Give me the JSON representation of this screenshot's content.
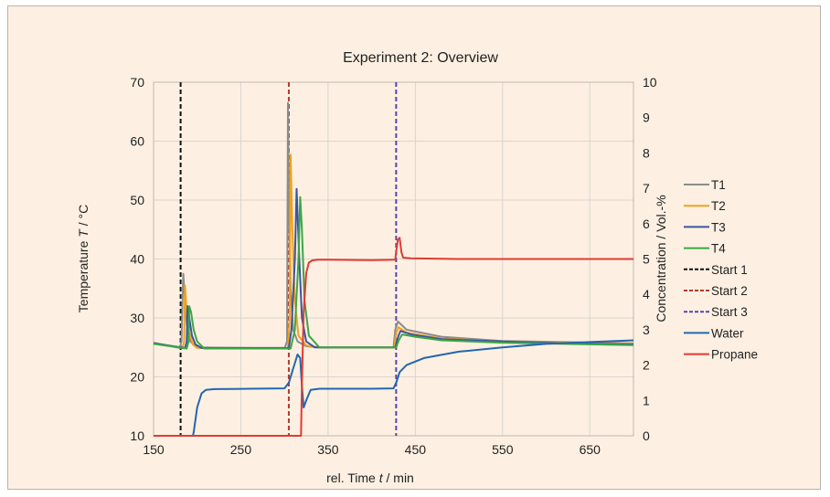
{
  "chart_data": {
    "type": "line",
    "title": "Experiment 2: Overview",
    "xlabel_prefix": "rel. Time ",
    "xlabel_var": "t",
    "xlabel_suffix": "  / min",
    "ylabel_prefix": "Temperature ",
    "ylabel_var": "T",
    "ylabel_suffix": " / °C",
    "y2label": "Concentration / Vol.-%",
    "xlim": [
      150,
      700
    ],
    "ylim": [
      10,
      70
    ],
    "y2lim": [
      0,
      10
    ],
    "xticks": [
      150,
      250,
      350,
      450,
      550,
      650
    ],
    "yticks": [
      10,
      20,
      30,
      40,
      50,
      60,
      70
    ],
    "y2ticks": [
      0,
      1,
      2,
      3,
      4,
      5,
      6,
      7,
      8,
      9,
      10
    ],
    "grid": true,
    "legend_position": "right",
    "series": [
      {
        "name": "T1",
        "axis": "left",
        "color": "#8c8c8c",
        "x": [
          150,
          180,
          182,
          184,
          186,
          188,
          192,
          200,
          260,
          300,
          303,
          304,
          305,
          307,
          310,
          315,
          325,
          340,
          400,
          425,
          427,
          430,
          440,
          480,
          550,
          620,
          700
        ],
        "y": [
          25.8,
          24.9,
          26,
          37.5,
          33,
          29,
          26,
          25,
          24.9,
          24.8,
          26,
          66.5,
          50,
          35,
          28,
          26,
          25.2,
          25,
          25,
          25,
          28,
          29.4,
          28,
          26.8,
          26.1,
          25.9,
          25.7
        ]
      },
      {
        "name": "T2",
        "axis": "left",
        "color": "#f0a21c",
        "x": [
          150,
          183,
          185,
          186,
          188,
          191,
          195,
          200,
          260,
          304,
          306,
          307,
          309,
          312,
          316,
          325,
          340,
          400,
          426,
          428,
          431,
          440,
          480,
          550,
          620,
          700
        ],
        "y": [
          25.7,
          24.9,
          26,
          35.5,
          31,
          27.5,
          25.5,
          24.9,
          24.9,
          24.9,
          30,
          57.7,
          45,
          33,
          27,
          25.3,
          25,
          25,
          25,
          27.5,
          28.4,
          27.5,
          26.5,
          26,
          25.8,
          25.6
        ]
      },
      {
        "name": "T3",
        "axis": "left",
        "color": "#3d54a3",
        "x": [
          150,
          186,
          188,
          189,
          191,
          194,
          198,
          205,
          260,
          305,
          308,
          312,
          314,
          317,
          320,
          325,
          335,
          400,
          427,
          430,
          433,
          445,
          480,
          550,
          620,
          700
        ],
        "y": [
          25.7,
          24.9,
          26,
          32,
          30,
          27,
          25.5,
          24.9,
          24.9,
          24.9,
          28,
          40,
          51.9,
          40,
          30,
          26,
          25,
          25,
          25,
          26.7,
          27.8,
          27.2,
          26.4,
          26,
          25.7,
          25.5
        ]
      },
      {
        "name": "T4",
        "axis": "left",
        "color": "#3aa845",
        "x": [
          150,
          188,
          190,
          191,
          193,
          196,
          200,
          208,
          260,
          307,
          312,
          316,
          318,
          320,
          323,
          328,
          340,
          400,
          428,
          431,
          435,
          450,
          480,
          550,
          620,
          700
        ],
        "y": [
          25.6,
          24.8,
          26,
          32,
          31,
          28,
          26,
          24.8,
          24.8,
          24.8,
          28,
          40,
          50.5,
          45,
          33,
          27,
          25,
          25,
          25,
          26.2,
          27.2,
          26.8,
          26.2,
          25.8,
          25.6,
          25.4
        ]
      },
      {
        "name": "Water",
        "axis": "right",
        "color": "#2266b0",
        "x": [
          150,
          195,
          196,
          200,
          205,
          210,
          220,
          260,
          300,
          305,
          310,
          315,
          318,
          320,
          322,
          325,
          330,
          340,
          400,
          425,
          428,
          432,
          440,
          460,
          500,
          550,
          600,
          650,
          700
        ],
        "y": [
          0,
          0,
          0.1,
          0.8,
          1.2,
          1.3,
          1.32,
          1.33,
          1.34,
          1.5,
          1.9,
          2.3,
          2.2,
          1.4,
          0.8,
          1.0,
          1.3,
          1.33,
          1.33,
          1.34,
          1.5,
          1.8,
          2.0,
          2.2,
          2.38,
          2.5,
          2.6,
          2.65,
          2.7
        ]
      },
      {
        "name": "Propane",
        "axis": "right",
        "color": "#e13a33",
        "x": [
          150,
          319,
          320,
          322,
          325,
          328,
          332,
          338,
          350,
          400,
          427,
          428,
          430,
          432,
          434,
          436,
          445,
          500,
          600,
          700
        ],
        "y": [
          0,
          0,
          1.5,
          3.5,
          4.6,
          4.9,
          4.96,
          4.98,
          4.98,
          4.97,
          4.98,
          5.2,
          5.55,
          5.6,
          5.2,
          5.04,
          5.02,
          5.0,
          5.0,
          5.0
        ]
      }
    ],
    "markers": [
      {
        "name": "Start 1",
        "x": 181,
        "color": "#111111"
      },
      {
        "name": "Start 2",
        "x": 305,
        "color": "#b73a2b"
      },
      {
        "name": "Start 3",
        "x": 428,
        "color": "#5a45a8"
      }
    ],
    "legend": [
      "T1",
      "T2",
      "T3",
      "T4",
      "Start 1",
      "Start 2",
      "Start 3",
      "Water",
      "Propane"
    ]
  }
}
